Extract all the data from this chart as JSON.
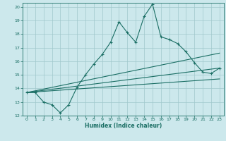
{
  "xlabel": "Humidex (Indice chaleur)",
  "bg_color": "#cce8ec",
  "grid_color": "#a0c8cc",
  "line_color": "#1a6e64",
  "xlim": [
    -0.5,
    23.5
  ],
  "ylim": [
    12,
    20.3
  ],
  "xticks": [
    0,
    1,
    2,
    3,
    4,
    5,
    6,
    7,
    8,
    9,
    10,
    11,
    12,
    13,
    14,
    15,
    16,
    17,
    18,
    19,
    20,
    21,
    22,
    23
  ],
  "yticks": [
    12,
    13,
    14,
    15,
    16,
    17,
    18,
    19,
    20
  ],
  "series1_x": [
    0,
    1,
    2,
    3,
    4,
    5,
    6,
    7,
    8,
    9,
    10,
    11,
    12,
    13,
    14,
    15,
    16,
    17,
    18,
    19,
    20,
    21,
    22,
    23
  ],
  "series1_y": [
    13.7,
    13.7,
    13.0,
    12.8,
    12.2,
    12.8,
    14.1,
    15.0,
    15.8,
    16.5,
    17.4,
    18.9,
    18.1,
    17.4,
    19.3,
    20.2,
    17.8,
    17.6,
    17.3,
    16.7,
    15.9,
    15.2,
    15.1,
    15.5
  ],
  "series2_x": [
    0,
    23
  ],
  "series2_y": [
    13.7,
    16.6
  ],
  "series3_x": [
    0,
    23
  ],
  "series3_y": [
    13.7,
    15.5
  ],
  "series4_x": [
    0,
    23
  ],
  "series4_y": [
    13.7,
    14.7
  ]
}
